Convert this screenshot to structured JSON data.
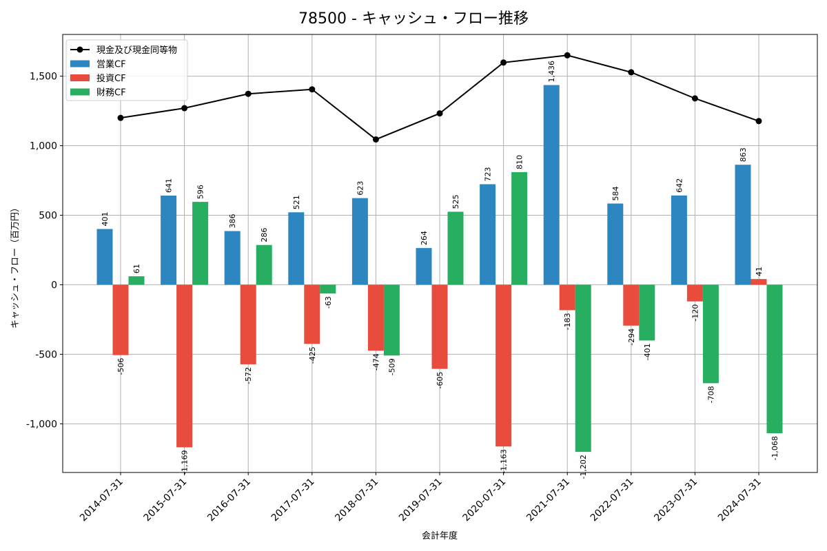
{
  "chart_data": {
    "type": "bar",
    "title": "78500 - キャッシュ・フロー推移",
    "xlabel": "会計年度",
    "ylabel": "キャッシュ・フロー（百万円）",
    "categories": [
      "2014-07-31",
      "2015-07-31",
      "2016-07-31",
      "2017-07-31",
      "2018-07-31",
      "2019-07-31",
      "2020-07-31",
      "2021-07-31",
      "2022-07-31",
      "2023-07-31",
      "2024-07-31"
    ],
    "ylim": [
      -1350,
      1800
    ],
    "yticks": [
      -1000,
      -500,
      0,
      500,
      1000,
      1500
    ],
    "ytick_labels": [
      "-1,000",
      "-500",
      "0",
      "500",
      "1,000",
      "1,500"
    ],
    "grid": true,
    "legend_position": "top-left",
    "series": [
      {
        "name": "営業CF",
        "kind": "bar",
        "color": "#2e86c1",
        "values": [
          401,
          641,
          386,
          521,
          623,
          264,
          723,
          1436,
          584,
          642,
          863
        ],
        "labels": [
          "401",
          "641",
          "386",
          "521",
          "623",
          "264",
          "723",
          "1,436",
          "584",
          "642",
          "863"
        ]
      },
      {
        "name": "投資CF",
        "kind": "bar",
        "color": "#e74c3c",
        "values": [
          -506,
          -1169,
          -572,
          -425,
          -474,
          -605,
          -1163,
          -183,
          -294,
          -120,
          41
        ],
        "labels": [
          "-506",
          "-1,169",
          "-572",
          "-425",
          "-474",
          "-605",
          "-1,163",
          "-183",
          "-294",
          "-120",
          "41"
        ]
      },
      {
        "name": "財務CF",
        "kind": "bar",
        "color": "#27ae60",
        "values": [
          61,
          596,
          286,
          -63,
          -509,
          525,
          810,
          -1202,
          -401,
          -708,
          -1068
        ],
        "labels": [
          "61",
          "596",
          "286",
          "-63",
          "-509",
          "525",
          "810",
          "-1,202",
          "-401",
          "-708",
          "-1,068"
        ]
      },
      {
        "name": "現金及び現金同等物",
        "kind": "line",
        "color": "#000000",
        "values": [
          1200,
          1270,
          1373,
          1405,
          1045,
          1232,
          1598,
          1650,
          1528,
          1340,
          1177
        ]
      }
    ]
  }
}
